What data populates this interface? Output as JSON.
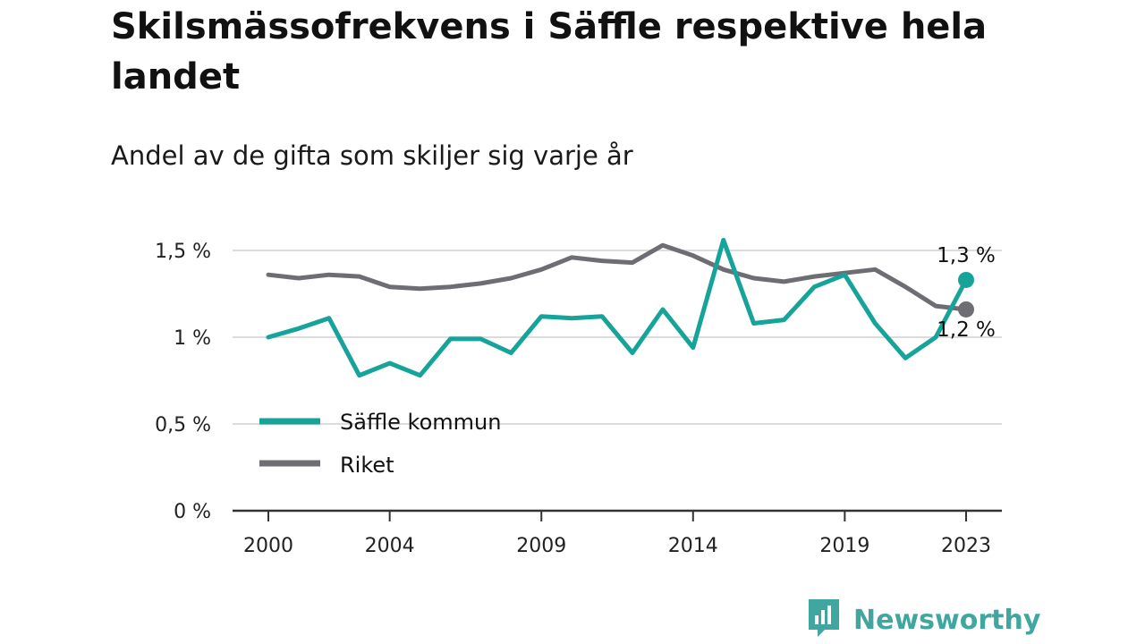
{
  "title": "Skilsmässofrekvens i Säffle respektive hela landet",
  "subtitle": "Andel av de gifta som skiljer sig varje år",
  "brand": {
    "name": "Newsworthy",
    "logo_icon": "newsworthy-logo-icon",
    "color": "#3fa79f"
  },
  "chart_data": {
    "type": "line",
    "x": [
      2000,
      2001,
      2002,
      2003,
      2004,
      2005,
      2006,
      2007,
      2008,
      2009,
      2010,
      2011,
      2012,
      2013,
      2014,
      2015,
      2016,
      2017,
      2018,
      2019,
      2020,
      2021,
      2022,
      2023
    ],
    "x_tick_labels": [
      "2000",
      "2004",
      "2009",
      "2014",
      "2019",
      "2023"
    ],
    "y_ticks": [
      0,
      0.5,
      1,
      1.5
    ],
    "y_tick_labels": [
      "0 %",
      "0,5 %",
      "1 %",
      "1,5 %"
    ],
    "ylim": [
      0,
      1.5
    ],
    "grid": true,
    "legend_position": "lower-left",
    "series": [
      {
        "name": "Säffle kommun",
        "color": "#16a39a",
        "values": [
          1.0,
          1.05,
          1.11,
          0.78,
          0.85,
          0.78,
          0.99,
          0.99,
          0.91,
          1.12,
          1.11,
          1.12,
          0.91,
          1.16,
          0.94,
          1.56,
          1.08,
          1.1,
          1.29,
          1.36,
          1.08,
          0.88,
          1.0,
          1.33
        ],
        "end_label": "1,3 %"
      },
      {
        "name": "Riket",
        "color": "#6e6d73",
        "values": [
          1.36,
          1.34,
          1.36,
          1.35,
          1.29,
          1.28,
          1.29,
          1.31,
          1.34,
          1.39,
          1.46,
          1.44,
          1.43,
          1.53,
          1.47,
          1.39,
          1.34,
          1.32,
          1.35,
          1.37,
          1.39,
          1.29,
          1.18,
          1.16
        ],
        "end_label": "1,2 %"
      }
    ]
  }
}
